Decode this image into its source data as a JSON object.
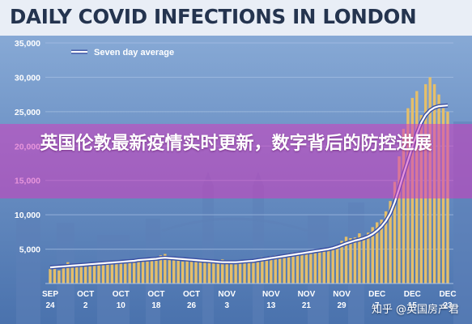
{
  "headline": "DAILY COVID INFECTIONS IN LONDON",
  "overlay_title": "英国伦敦最新疫情实时更新，数字背后的防控进展",
  "watermark": "知乎 @英国房产君",
  "colors": {
    "bar": "#e5bf6a",
    "line": "#ffffff",
    "line_outline": "#3a4fa3",
    "axis_text": "#ffffff",
    "grid": "#a9c2e4",
    "overlay": "#d23cbe"
  },
  "chart_data": {
    "type": "bar",
    "title": "DAILY COVID INFECTIONS IN LONDON",
    "ylim": [
      0,
      35000
    ],
    "y_ticks": [
      "35,000",
      "30,000",
      "25,000",
      "20,000",
      "15,000",
      "10,000",
      "5,000"
    ],
    "y_tick_values": [
      35000,
      30000,
      25000,
      20000,
      15000,
      10000,
      5000
    ],
    "x_ticks": [
      {
        "line1": "SEP",
        "line2": "24",
        "day": 0
      },
      {
        "line1": "OCT",
        "line2": "2",
        "day": 8
      },
      {
        "line1": "OCT",
        "line2": "10",
        "day": 16
      },
      {
        "line1": "OCT",
        "line2": "18",
        "day": 24
      },
      {
        "line1": "OCT",
        "line2": "26",
        "day": 32
      },
      {
        "line1": "NOV",
        "line2": "3",
        "day": 40
      },
      {
        "line1": "NOV",
        "line2": "13",
        "day": 50
      },
      {
        "line1": "NOV",
        "line2": "21",
        "day": 58
      },
      {
        "line1": "NOV",
        "line2": "29",
        "day": 66
      },
      {
        "line1": "DEC",
        "line2": "7",
        "day": 74
      },
      {
        "line1": "DEC",
        "line2": "15",
        "day": 82
      },
      {
        "line1": "DEC",
        "line2": "23",
        "day": 90
      }
    ],
    "legend": [
      {
        "label": "Seven day average",
        "location": "top-left"
      }
    ],
    "grid": true,
    "series": [
      {
        "kind": "bar",
        "values": [
          2100,
          2300,
          1900,
          2600,
          3100,
          2500,
          2400,
          2800,
          2600,
          2900,
          3000,
          2700,
          2900,
          3200,
          3000,
          3300,
          3100,
          2900,
          3400,
          3300,
          3600,
          3400,
          3200,
          3600,
          3800,
          4100,
          4300,
          3900,
          3700,
          3400,
          3200,
          3500,
          3400,
          3200,
          3100,
          3300,
          3200,
          3000,
          3300,
          3500,
          3100,
          2900,
          2800,
          3000,
          3300,
          3500,
          3200,
          3600,
          3800,
          3700,
          4000,
          4100,
          3900,
          4200,
          4400,
          4500,
          4300,
          4500,
          4800,
          4700,
          4900,
          4600,
          4700,
          5000,
          5300,
          5600,
          6200,
          6800,
          6600,
          6700,
          7300,
          6900,
          7400,
          8200,
          8900,
          9300,
          10500,
          12000,
          14800,
          18500,
          22500,
          25500,
          27000,
          28000,
          24500,
          29000,
          30000,
          29000,
          27500,
          25500,
          25000
        ]
      },
      {
        "kind": "line",
        "name": "Seven day average",
        "values": [
          2350,
          2400,
          2450,
          2500,
          2550,
          2600,
          2650,
          2700,
          2750,
          2800,
          2850,
          2900,
          2950,
          3000,
          3050,
          3100,
          3150,
          3200,
          3250,
          3300,
          3400,
          3450,
          3500,
          3550,
          3600,
          3700,
          3750,
          3700,
          3650,
          3600,
          3550,
          3500,
          3450,
          3400,
          3350,
          3300,
          3250,
          3200,
          3150,
          3100,
          3100,
          3100,
          3100,
          3150,
          3200,
          3250,
          3300,
          3400,
          3500,
          3600,
          3700,
          3800,
          3900,
          4000,
          4100,
          4200,
          4300,
          4400,
          4500,
          4600,
          4700,
          4800,
          4900,
          5000,
          5150,
          5350,
          5600,
          5850,
          6050,
          6250,
          6400,
          6600,
          6850,
          7200,
          7700,
          8300,
          9100,
          10200,
          11800,
          13800,
          15900,
          17900,
          19900,
          21800,
          23400,
          24500,
          25200,
          25600,
          25800,
          25850,
          25900
        ]
      }
    ]
  }
}
